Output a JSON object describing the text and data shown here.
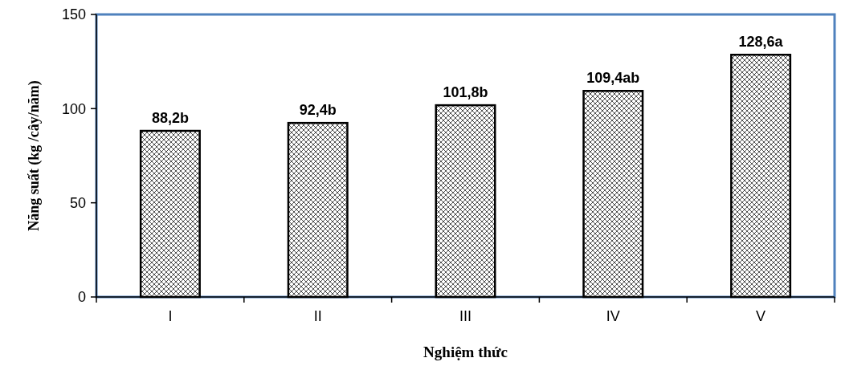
{
  "chart_data": {
    "type": "bar",
    "xlabel": "Nghiệm thức",
    "ylabel": "Năng suất (kg /cây/năm)",
    "categories": [
      "I",
      "II",
      "III",
      "IV",
      "V"
    ],
    "values": [
      88.2,
      92.4,
      101.8,
      109.4,
      128.6
    ],
    "value_labels": [
      "88,2b",
      "92,4b",
      "101,8b",
      "109,4ab",
      "128,6a"
    ],
    "color": "#000000",
    "ylim": [
      0,
      150
    ],
    "yticks": [
      0,
      50,
      100,
      150
    ],
    "grid": false
  }
}
